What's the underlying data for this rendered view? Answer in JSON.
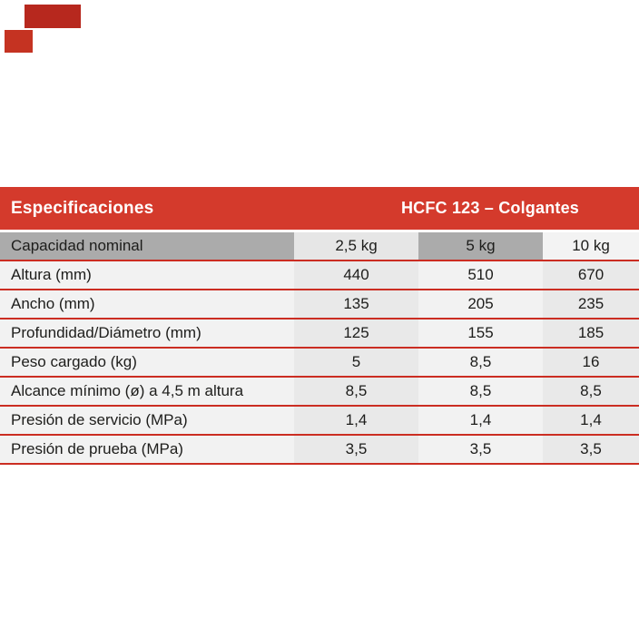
{
  "table": {
    "title": "Especificaciones",
    "series": "HCFC 123 – Colgantes",
    "capacity_row": {
      "label": "Capacidad nominal",
      "values": [
        "2,5 kg",
        "5 kg",
        "10 kg"
      ]
    },
    "rows": [
      {
        "label": "Altura (mm)",
        "values": [
          "440",
          "510",
          "670"
        ]
      },
      {
        "label": "Ancho (mm)",
        "values": [
          "135",
          "205",
          "235"
        ]
      },
      {
        "label": "Profundidad/Diámetro (mm)",
        "values": [
          "125",
          "155",
          "185"
        ]
      },
      {
        "label": "Peso cargado (kg)",
        "values": [
          "5",
          "8,5",
          "16"
        ]
      },
      {
        "label": "Alcance mínimo (ø) a 4,5 m altura",
        "values": [
          "8,5",
          "8,5",
          "8,5"
        ]
      },
      {
        "label": "Presión de servicio (MPa)",
        "values": [
          "1,4",
          "1,4",
          "1,4"
        ]
      },
      {
        "label": "Presión de prueba (MPa)",
        "values": [
          "3,5",
          "3,5",
          "3,5"
        ]
      }
    ],
    "colors": {
      "band_red": "#d43a2c",
      "rule_red": "#cb2d22",
      "header_gray": "#ababab",
      "stripe_light": "#f2f2f2",
      "stripe_dark": "#e9e9e9",
      "text": "#1d1d1b",
      "band_text": "#ffffff"
    }
  }
}
